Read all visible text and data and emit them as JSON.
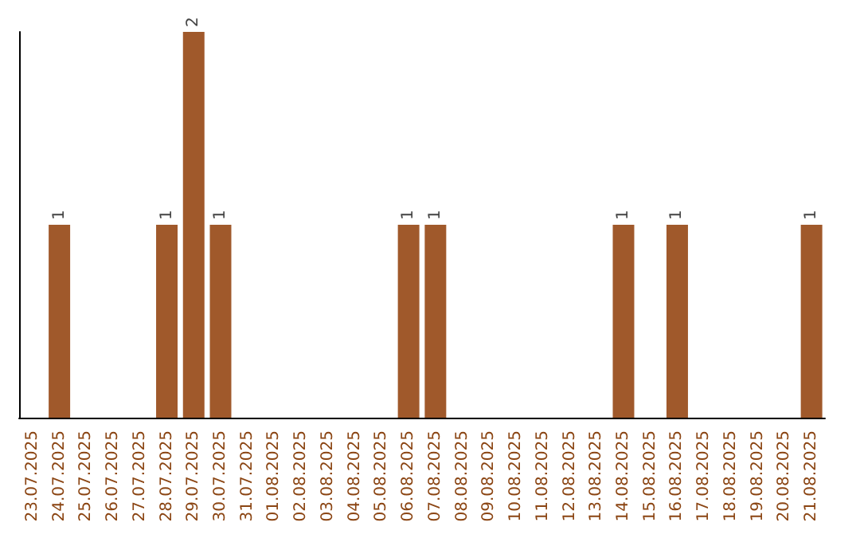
{
  "chart_data": {
    "type": "bar",
    "categories": [
      "23.07.2025",
      "24.07.2025",
      "25.07.2025",
      "26.07.2025",
      "27.07.2025",
      "28.07.2025",
      "29.07.2025",
      "30.07.2025",
      "31.07.2025",
      "01.08.2025",
      "02.08.2025",
      "03.08.2025",
      "04.08.2025",
      "05.08.2025",
      "06.08.2025",
      "07.08.2025",
      "08.08.2025",
      "09.08.2025",
      "10.08.2025",
      "11.08.2025",
      "12.08.2025",
      "13.08.2025",
      "14.08.2025",
      "15.08.2025",
      "16.08.2025",
      "17.08.2025",
      "18.08.2025",
      "19.08.2025",
      "20.08.2025",
      "21.08.2025"
    ],
    "values": [
      0,
      1,
      0,
      0,
      0,
      1,
      2,
      1,
      0,
      0,
      0,
      0,
      0,
      0,
      1,
      1,
      0,
      0,
      0,
      0,
      0,
      0,
      1,
      0,
      1,
      0,
      0,
      0,
      0,
      1
    ],
    "value_labels": [
      null,
      "1",
      null,
      null,
      null,
      "1",
      "2",
      "1",
      null,
      null,
      null,
      null,
      null,
      null,
      "1",
      "1",
      null,
      null,
      null,
      null,
      null,
      null,
      "1",
      null,
      "1",
      null,
      null,
      null,
      null,
      "1"
    ],
    "color": "#a0592b",
    "tick_labels": "x"
  }
}
